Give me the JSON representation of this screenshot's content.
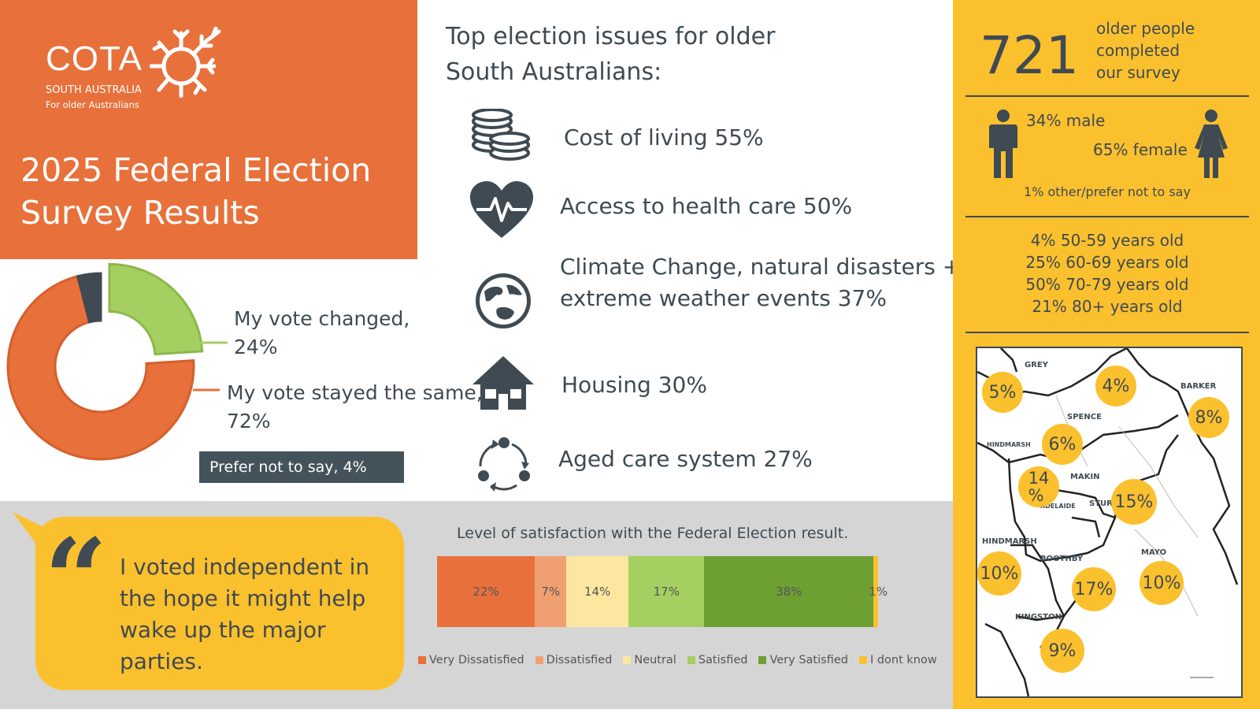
{
  "header": {
    "logo_main": "COTA",
    "logo_sub1": "SOUTH AUSTRALIA",
    "logo_sub2": "For older Australians",
    "title_line1": "2025 Federal Election",
    "title_line2": "Survey Results"
  },
  "issues": {
    "title_line1": "Top election issues for older",
    "title_line2": "South Australians:",
    "items": [
      {
        "icon": "coins-icon",
        "label": "Cost of living  55%"
      },
      {
        "icon": "heart-pulse-icon",
        "label": "Access to health care  50%"
      },
      {
        "icon": "globe-icon",
        "label_line1": "Climate Change, natural disasters +",
        "label_line2": "extreme weather events  37%"
      },
      {
        "icon": "house-icon",
        "label": "Housing  30%"
      },
      {
        "icon": "cycle-icon",
        "label": "Aged care system  27%"
      }
    ]
  },
  "survey": {
    "count": "721",
    "count_text_line1": "older people",
    "count_text_line2": "completed",
    "count_text_line3": "our survey",
    "male": "34% male",
    "female": "65% female",
    "other": "1% other/prefer not to say",
    "ages": [
      "4%  50-59 years old",
      "25% 60-69 years old",
      "50% 70-79 years old",
      "21% 80+ years old"
    ]
  },
  "map": {
    "regions": [
      "GREY",
      "BARKER",
      "SPENCE",
      "HINDMARSH",
      "MAKIN",
      "STURT",
      "ADELAIDE",
      "MAYO",
      "HINDMARSH",
      "BOOTHBY",
      "KINGSTON"
    ],
    "bubbles": [
      "5%",
      "4%",
      "8%",
      "6%",
      "14\n%",
      "15%",
      "10%",
      "17%",
      "10%",
      "9%"
    ]
  },
  "quote": {
    "text_line1": "I voted independent in",
    "text_line2": "the hope it might help",
    "text_line3": "wake up the major",
    "text_line4": "parties."
  },
  "colors": {
    "orange": "#e8703a",
    "yellow": "#fbc02d",
    "dark": "#3f4a52",
    "light_green": "#a5cf61",
    "green": "#6d9f32"
  },
  "chart_data": [
    {
      "type": "pie",
      "subtype": "donut",
      "categories": [
        "My vote changed,",
        "My vote stayed the same,",
        "Prefer not to say, 4%"
      ],
      "values": [
        24,
        72,
        4
      ],
      "labels": {
        "changed_line1": "My vote changed,",
        "changed_line2": "24%",
        "same_line1": "My vote stayed the same,",
        "same_line2": "72%",
        "prefer": "Prefer not to say, 4%"
      },
      "colors": [
        "#a5cf61",
        "#e8703a",
        "#3f4a52"
      ]
    },
    {
      "type": "bar",
      "subtype": "100% stacked horizontal",
      "title": "Level of satisfaction with the Federal Election result.",
      "categories": [
        "Very Dissatisfied",
        "Dissatisfied",
        "Neutral",
        "Satisfied",
        "Very Satisfied",
        "I dont know"
      ],
      "values": [
        22,
        7,
        14,
        17,
        38,
        1
      ],
      "value_labels": [
        "22%",
        "7%",
        "14%",
        "17%",
        "38%",
        "1%"
      ],
      "colors": [
        "#e8703a",
        "#f0a070",
        "#fde7a0",
        "#a5cf61",
        "#6d9f32",
        "#fbc02d"
      ],
      "legend": "bottom"
    }
  ]
}
